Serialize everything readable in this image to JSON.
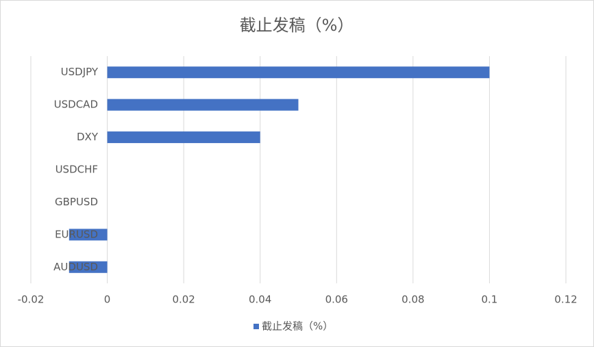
{
  "chart_data": {
    "type": "hbar",
    "title": "截止发稿（%）",
    "categories": [
      "USDJPY",
      "USDCAD",
      "DXY",
      "USDCHF",
      "GBPUSD",
      "EURUSD",
      "AUDUSD"
    ],
    "series": [
      {
        "name": "截止发稿（%）",
        "color": "#4472c4",
        "values": [
          0.1,
          0.05,
          0.04,
          0,
          0,
          -0.01,
          -0.01
        ]
      }
    ],
    "xlim": [
      -0.02,
      0.12
    ],
    "xticks": [
      -0.02,
      0,
      0.02,
      0.04,
      0.06,
      0.08,
      0.1,
      0.12
    ],
    "grid": true,
    "legend": "bottom"
  }
}
